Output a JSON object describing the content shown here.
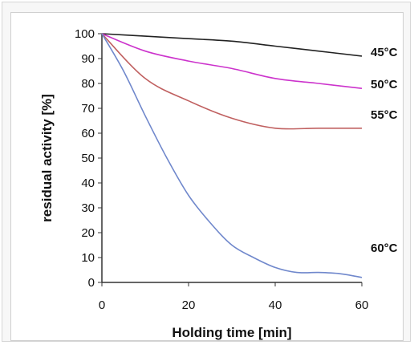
{
  "chart_data": {
    "type": "line",
    "xlabel": "Holding time [min]",
    "ylabel": "residual activity [%]",
    "xlim": [
      0,
      60
    ],
    "ylim": [
      0,
      100
    ],
    "x_ticks": [
      0,
      20,
      40,
      60
    ],
    "y_ticks": [
      0,
      10,
      20,
      30,
      40,
      50,
      60,
      70,
      80,
      90,
      100
    ],
    "grid": false,
    "series": [
      {
        "name": "45°C",
        "color": "#222222",
        "x": [
          0,
          10,
          20,
          30,
          40,
          50,
          60
        ],
        "y": [
          100,
          99,
          98,
          97,
          95,
          93,
          91
        ]
      },
      {
        "name": "50°C",
        "color": "#cc33cc",
        "x": [
          0,
          10,
          20,
          30,
          40,
          50,
          60
        ],
        "y": [
          100,
          93,
          89,
          86,
          82,
          80,
          78
        ]
      },
      {
        "name": "55°C",
        "color": "#c06060",
        "x": [
          0,
          10,
          20,
          30,
          40,
          50,
          60
        ],
        "y": [
          100,
          82,
          73,
          66,
          62,
          62,
          62
        ]
      },
      {
        "name": "60°C",
        "color": "#7088cc",
        "x": [
          0,
          5,
          10,
          15,
          20,
          25,
          30,
          35,
          40,
          45,
          50,
          55,
          60
        ],
        "y": [
          100,
          85,
          67,
          50,
          35,
          24,
          15,
          10,
          6,
          4,
          4,
          3.5,
          2
        ]
      }
    ]
  }
}
